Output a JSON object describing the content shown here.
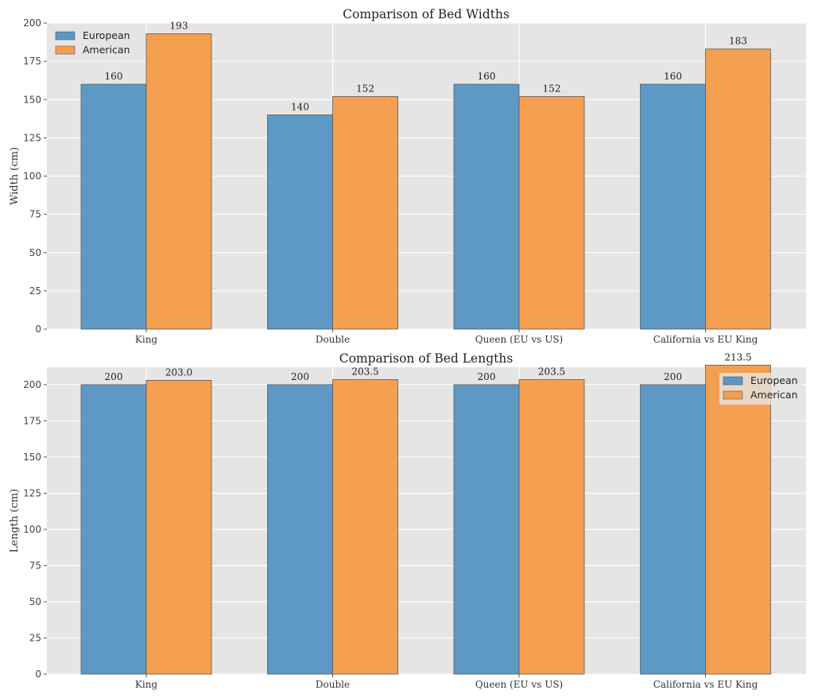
{
  "chart_data": [
    {
      "type": "bar",
      "title": "Comparison of Bed Widths",
      "xlabel": "",
      "ylabel": "Width (cm)",
      "ylim": [
        0,
        200
      ],
      "yticks": [
        "0",
        "25",
        "50",
        "75",
        "100",
        "125",
        "150",
        "175",
        "200"
      ],
      "categories": [
        "King",
        "Double",
        "Queen (EU vs US)",
        "California vs EU King"
      ],
      "series": [
        {
          "name": "European",
          "color": "#5b97c4",
          "values": [
            160,
            140,
            160,
            160
          ],
          "labels": [
            "160",
            "140",
            "160",
            "160"
          ]
        },
        {
          "name": "American",
          "color": "#f59d4e",
          "values": [
            193,
            152,
            152,
            183
          ],
          "labels": [
            "193",
            "152",
            "152",
            "183"
          ]
        }
      ],
      "legend_position": "top-left",
      "grid": true
    },
    {
      "type": "bar",
      "title": "Comparison of Bed Lengths",
      "xlabel": "",
      "ylabel": "Length (cm)",
      "ylim": [
        0,
        212
      ],
      "yticks": [
        "0",
        "25",
        "50",
        "75",
        "100",
        "125",
        "150",
        "175",
        "200"
      ],
      "categories": [
        "King",
        "Double",
        "Queen (EU vs US)",
        "California vs EU King"
      ],
      "series": [
        {
          "name": "European",
          "color": "#5b97c4",
          "values": [
            200,
            200,
            200,
            200
          ],
          "labels": [
            "200",
            "200",
            "200",
            "200"
          ]
        },
        {
          "name": "American",
          "color": "#f59d4e",
          "values": [
            203.0,
            203.5,
            203.5,
            213.5
          ],
          "labels": [
            "203.0",
            "203.5",
            "203.5",
            "213.5"
          ]
        }
      ],
      "legend_position": "top-right",
      "grid": true
    }
  ]
}
